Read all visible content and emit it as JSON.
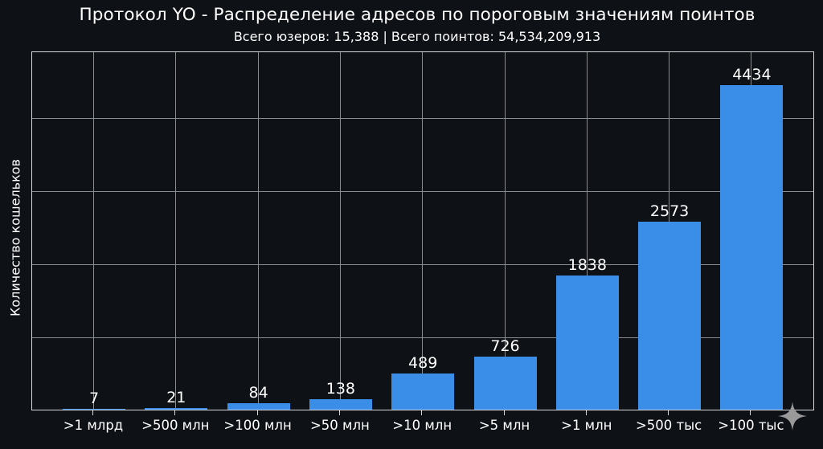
{
  "header": {
    "title": "Протокол YO - Распределение адресов по пороговым значениям поинтов",
    "subtitle": "Всего юзеров: 15,388 | Всего поинтов: 54,534,209,913"
  },
  "axes": {
    "ylabel": "Количество кошельков"
  },
  "colors": {
    "background": "#0e1116",
    "bar": "#3a8ee8",
    "grid": "#8a8c90",
    "text": "#ffffff"
  },
  "watermark": {
    "icon": "sparkle-icon"
  },
  "chart_data": {
    "type": "bar",
    "title": "Протокол YO - Распределение адресов по пороговым значениям поинтов",
    "subtitle": "Всего юзеров: 15,388 | Всего поинтов: 54,534,209,913",
    "xlabel": "",
    "ylabel": "Количество кошельков",
    "categories": [
      ">1 млрд",
      ">500 млн",
      ">100 млн",
      ">50 млн",
      ">10 млн",
      ">5 млн",
      ">1 млн",
      ">500 тыс",
      ">100 тыс"
    ],
    "values": [
      7,
      21,
      84,
      138,
      489,
      726,
      1838,
      2573,
      4434
    ],
    "data_labels": [
      "7",
      "21",
      "84",
      "138",
      "489",
      "726",
      "1838",
      "2573",
      "4434"
    ],
    "ylim": [
      0,
      4900
    ],
    "y_gridlines": [
      1000,
      2000,
      3000,
      4000
    ],
    "y_tick_labels_visible": false,
    "grid": true,
    "legend": "none",
    "bar_color": "#3a8ee8"
  }
}
